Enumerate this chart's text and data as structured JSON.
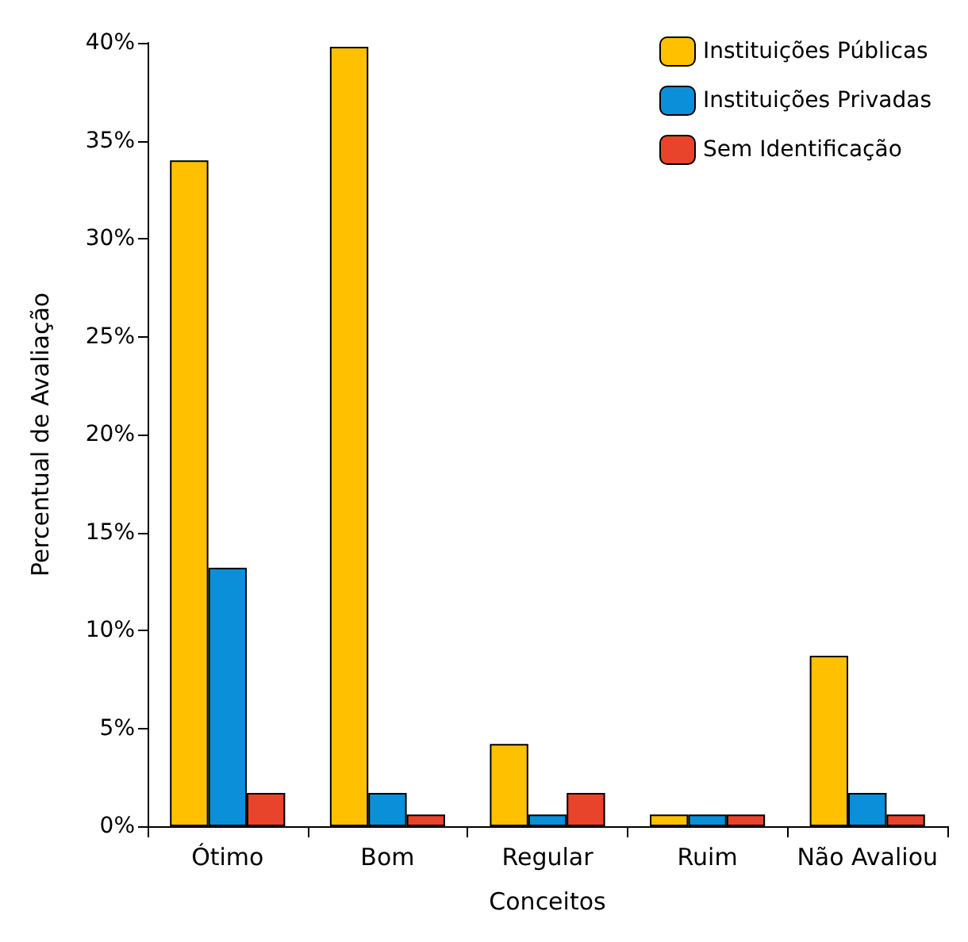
{
  "chart_data": {
    "type": "bar",
    "xlabel": "Conceitos",
    "ylabel": "Percentual de Avaliação",
    "categories": [
      "Ótimo",
      "Bom",
      "Regular",
      "Ruim",
      "Não Avaliou"
    ],
    "series": [
      {
        "name": "Instituições Públicas",
        "color": "#ffc000",
        "values": [
          34,
          39.8,
          4.2,
          0.6,
          8.7
        ]
      },
      {
        "name": "Instituições Privadas",
        "color": "#0a8fd8",
        "values": [
          13.2,
          1.7,
          0.6,
          0.6,
          1.7
        ]
      },
      {
        "name": "Sem Identificação",
        "color": "#e8432b",
        "values": [
          1.7,
          0.6,
          1.7,
          0.6,
          0.6
        ]
      }
    ],
    "ylim": [
      0,
      40
    ],
    "yticks": [
      {
        "value": 0,
        "label": "0%"
      },
      {
        "value": 5,
        "label": "5%"
      },
      {
        "value": 10,
        "label": "10%"
      },
      {
        "value": 15,
        "label": "15%"
      },
      {
        "value": 20,
        "label": "20%"
      },
      {
        "value": 25,
        "label": "25%"
      },
      {
        "value": 30,
        "label": "30%"
      },
      {
        "value": 35,
        "label": "35%"
      },
      {
        "value": 40,
        "label": "40%"
      }
    ],
    "grid": false,
    "legend": "top right"
  }
}
